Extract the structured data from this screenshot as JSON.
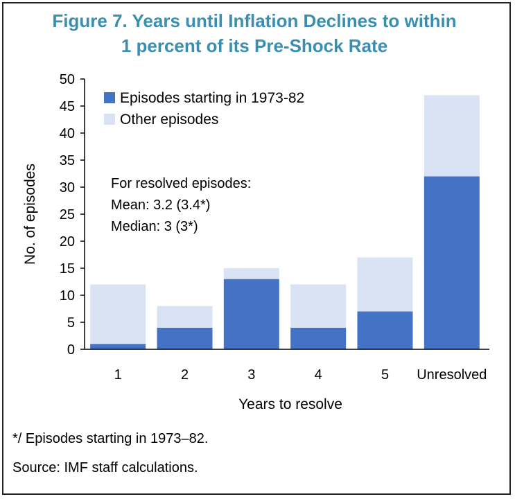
{
  "title_line1": "Figure 7. Years until Inflation Declines to within",
  "title_line2": "1 percent of its Pre-Shock Rate",
  "chart_data": {
    "type": "bar",
    "stacked": true,
    "categories": [
      "1",
      "2",
      "3",
      "4",
      "5",
      "Unresolved"
    ],
    "series": [
      {
        "name": "Episodes starting in 1973-82",
        "values": [
          1,
          4,
          13,
          4,
          7,
          32
        ],
        "color": "#4472c4"
      },
      {
        "name": "Other episodes",
        "values": [
          11,
          4,
          2,
          8,
          10,
          15
        ],
        "color": "#dae3f3"
      }
    ],
    "xlabel": "Years to resolve",
    "ylabel": "No. of episodes",
    "ylim": [
      0,
      50
    ],
    "yticks": [
      0,
      5,
      10,
      15,
      20,
      25,
      30,
      35,
      40,
      45,
      50
    ],
    "legend_placement": "top-left",
    "annotation": [
      "For resolved episodes:",
      "Mean: 3.2 (3.4*)",
      "Median: 3 (3*)"
    ]
  },
  "footnote": "*/ Episodes starting in 1973–82.",
  "source": "Source: IMF staff calculations."
}
